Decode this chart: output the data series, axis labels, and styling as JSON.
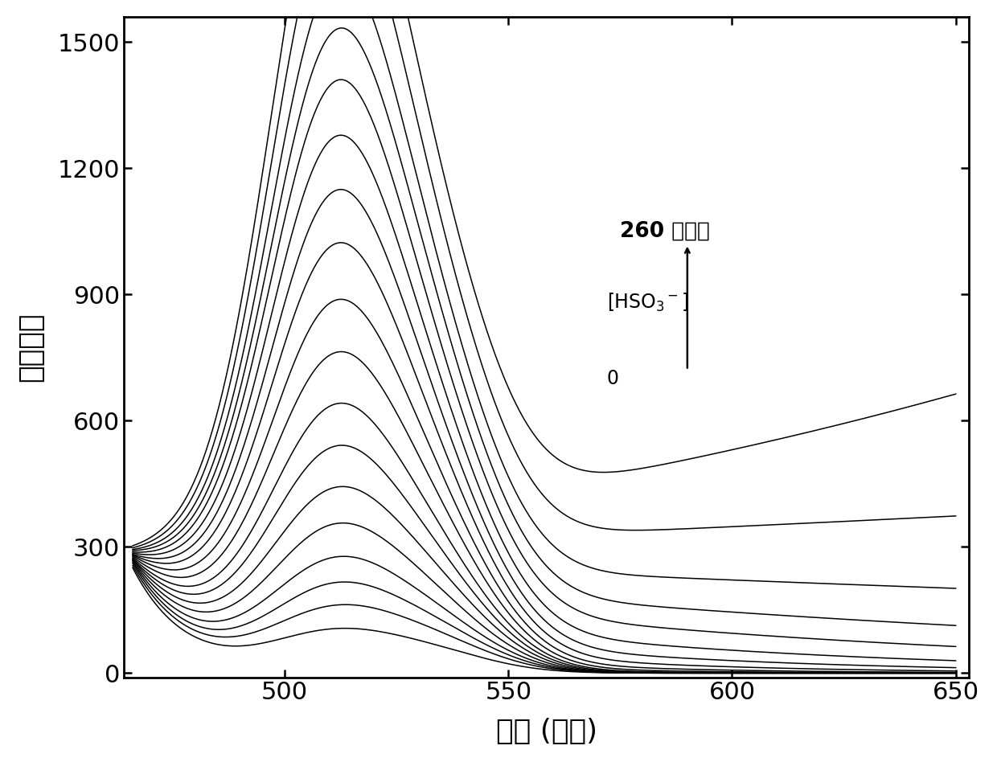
{
  "x_start": 466,
  "x_end": 650,
  "xlim": [
    464,
    653
  ],
  "ylim": [
    -10,
    1560
  ],
  "yticks": [
    0,
    300,
    600,
    900,
    1200,
    1500
  ],
  "xticks": [
    500,
    550,
    600,
    650
  ],
  "xlabel": "波长 (纳米)",
  "ylabel": "荧光强度",
  "peak_wavelength": 510,
  "dip_wavelength": 483,
  "shoulder_wavelength": 532,
  "start_wavelength": 466,
  "n_curves": 18,
  "peak_values": [
    85,
    130,
    175,
    225,
    290,
    360,
    440,
    520,
    615,
    710,
    810,
    900,
    990,
    1080,
    1160,
    1250,
    1370,
    1490
  ],
  "left_edge_values": [
    250,
    255,
    260,
    263,
    265,
    267,
    268,
    270,
    272,
    274,
    275,
    276,
    278,
    280,
    283,
    285,
    288,
    292
  ],
  "dip_values": [
    60,
    70,
    78,
    88,
    100,
    112,
    125,
    138,
    155,
    172,
    190,
    208,
    226,
    244,
    260,
    276,
    295,
    315
  ],
  "shoulder_ratios": [
    0.55,
    0.55,
    0.52,
    0.5,
    0.48,
    0.47,
    0.45,
    0.44,
    0.43,
    0.42,
    0.41,
    0.4,
    0.39,
    0.38,
    0.38,
    0.37,
    0.36,
    0.35
  ],
  "annotation_top": "260 微摩尔",
  "annotation_mid": "[HSO₃⁻]",
  "annotation_bot": "0",
  "line_color": "#000000",
  "bg_color": "#ffffff"
}
